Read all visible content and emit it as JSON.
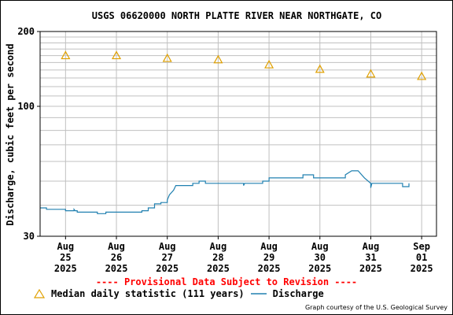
{
  "title": "USGS 06620000 NORTH PLATTE RIVER NEAR NORTHGATE, CO",
  "ylabel": "Discharge, cubic feet per second",
  "revision_notice": "---- Provisional Data Subject to Revision ----",
  "legend": {
    "median_label": "Median daily statistic (111 years)",
    "discharge_label": "Discharge"
  },
  "courtesy": "Graph courtesy of the U.S. Geological Survey",
  "colors": {
    "median": "#e0a000",
    "discharge": "#2080b0",
    "grid": "#c0c0c0",
    "notice": "#ff0000"
  },
  "chart_data": {
    "type": "line",
    "title": "USGS 06620000 NORTH PLATTE RIVER NEAR NORTHGATE, CO",
    "xlabel": "",
    "ylabel": "Discharge, cubic feet per second",
    "yscale": "log",
    "ylim": [
      30,
      200
    ],
    "ytick_labels": [
      "30",
      "100",
      "200"
    ],
    "xlim": [
      "2025-08-24T12:00",
      "2025-09-01T07:00"
    ],
    "xtick_labels": [
      {
        "date": "2025-08-25",
        "lines": [
          "Aug",
          "25",
          "2025"
        ]
      },
      {
        "date": "2025-08-26",
        "lines": [
          "Aug",
          "26",
          "2025"
        ]
      },
      {
        "date": "2025-08-27",
        "lines": [
          "Aug",
          "27",
          "2025"
        ]
      },
      {
        "date": "2025-08-28",
        "lines": [
          "Aug",
          "28",
          "2025"
        ]
      },
      {
        "date": "2025-08-29",
        "lines": [
          "Aug",
          "29",
          "2025"
        ]
      },
      {
        "date": "2025-08-30",
        "lines": [
          "Aug",
          "30",
          "2025"
        ]
      },
      {
        "date": "2025-08-31",
        "lines": [
          "Aug",
          "31",
          "2025"
        ]
      },
      {
        "date": "2025-09-01",
        "lines": [
          "Sep",
          "01",
          "2025"
        ]
      }
    ],
    "grid": true,
    "series": [
      {
        "name": "Median daily statistic (111 years)",
        "marker": "triangle",
        "points": [
          {
            "x": "2025-08-25",
            "y": 160
          },
          {
            "x": "2025-08-26",
            "y": 160
          },
          {
            "x": "2025-08-27",
            "y": 156
          },
          {
            "x": "2025-08-28",
            "y": 154
          },
          {
            "x": "2025-08-29",
            "y": 147
          },
          {
            "x": "2025-08-30",
            "y": 141
          },
          {
            "x": "2025-08-31",
            "y": 135
          },
          {
            "x": "2025-09-01",
            "y": 132
          }
        ]
      },
      {
        "name": "Discharge",
        "marker": "line",
        "points": [
          {
            "x": "2025-08-24T12:00",
            "y": 39.0
          },
          {
            "x": "2025-08-24T15:00",
            "y": 39.0
          },
          {
            "x": "2025-08-24T15:00",
            "y": 38.5
          },
          {
            "x": "2025-08-25T00:00",
            "y": 38.5
          },
          {
            "x": "2025-08-25T00:00",
            "y": 38.0
          },
          {
            "x": "2025-08-25T04:00",
            "y": 38.0
          },
          {
            "x": "2025-08-25T04:00",
            "y": 38.5
          },
          {
            "x": "2025-08-25T04:30",
            "y": 38.0
          },
          {
            "x": "2025-08-25T05:30",
            "y": 38.0
          },
          {
            "x": "2025-08-25T05:30",
            "y": 37.5
          },
          {
            "x": "2025-08-25T15:00",
            "y": 37.5
          },
          {
            "x": "2025-08-25T15:00",
            "y": 37.0
          },
          {
            "x": "2025-08-25T19:00",
            "y": 37.0
          },
          {
            "x": "2025-08-25T19:00",
            "y": 37.5
          },
          {
            "x": "2025-08-26T06:00",
            "y": 37.5
          },
          {
            "x": "2025-08-26T12:00",
            "y": 37.5
          },
          {
            "x": "2025-08-26T12:00",
            "y": 38.0
          },
          {
            "x": "2025-08-26T15:00",
            "y": 38.0
          },
          {
            "x": "2025-08-26T15:00",
            "y": 39.0
          },
          {
            "x": "2025-08-26T18:00",
            "y": 39.0
          },
          {
            "x": "2025-08-26T18:00",
            "y": 40.5
          },
          {
            "x": "2025-08-26T21:00",
            "y": 40.5
          },
          {
            "x": "2025-08-26T21:00",
            "y": 41.0
          },
          {
            "x": "2025-08-27T00:00",
            "y": 41.0
          },
          {
            "x": "2025-08-27T00:00",
            "y": 42.0
          },
          {
            "x": "2025-08-27T01:00",
            "y": 44.0
          },
          {
            "x": "2025-08-27T03:00",
            "y": 46.0
          },
          {
            "x": "2025-08-27T04:00",
            "y": 48.0
          },
          {
            "x": "2025-08-27T12:00",
            "y": 48.0
          },
          {
            "x": "2025-08-27T12:00",
            "y": 49.0
          },
          {
            "x": "2025-08-27T15:00",
            "y": 49.0
          },
          {
            "x": "2025-08-27T15:00",
            "y": 50.0
          },
          {
            "x": "2025-08-27T18:00",
            "y": 50.0
          },
          {
            "x": "2025-08-27T18:00",
            "y": 49.0
          },
          {
            "x": "2025-08-28T12:00",
            "y": 49.0
          },
          {
            "x": "2025-08-28T12:00",
            "y": 48.0
          },
          {
            "x": "2025-08-28T12:30",
            "y": 49.0
          },
          {
            "x": "2025-08-28T21:00",
            "y": 49.0
          },
          {
            "x": "2025-08-28T21:00",
            "y": 50.0
          },
          {
            "x": "2025-08-29T00:00",
            "y": 50.0
          },
          {
            "x": "2025-08-29T00:00",
            "y": 51.5
          },
          {
            "x": "2025-08-29T16:00",
            "y": 51.5
          },
          {
            "x": "2025-08-29T16:00",
            "y": 53.0
          },
          {
            "x": "2025-08-29T21:00",
            "y": 53.0
          },
          {
            "x": "2025-08-29T21:00",
            "y": 51.5
          },
          {
            "x": "2025-08-30T12:00",
            "y": 51.5
          },
          {
            "x": "2025-08-30T12:00",
            "y": 53.0
          },
          {
            "x": "2025-08-30T15:00",
            "y": 55.0
          },
          {
            "x": "2025-08-30T18:00",
            "y": 55.0
          },
          {
            "x": "2025-08-30T21:00",
            "y": 51.5
          },
          {
            "x": "2025-08-31T00:00",
            "y": 49.0
          },
          {
            "x": "2025-08-31T00:00",
            "y": 47.0
          },
          {
            "x": "2025-08-31T00:30",
            "y": 49.0
          },
          {
            "x": "2025-08-31T15:00",
            "y": 49.0
          },
          {
            "x": "2025-08-31T15:00",
            "y": 47.5
          },
          {
            "x": "2025-08-31T18:00",
            "y": 47.5
          },
          {
            "x": "2025-08-31T18:00",
            "y": 49.0
          }
        ]
      }
    ]
  }
}
